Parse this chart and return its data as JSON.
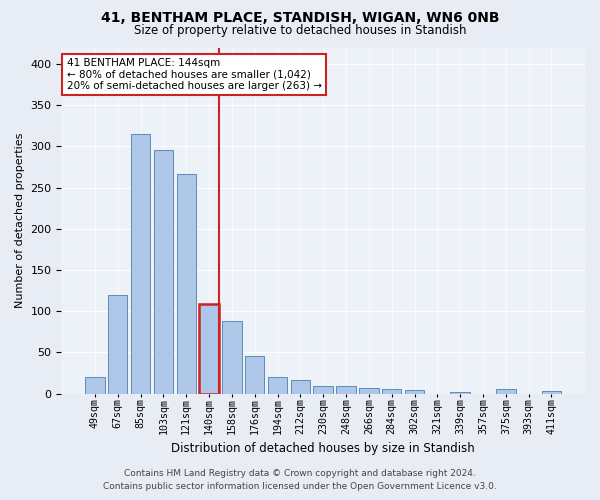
{
  "title1": "41, BENTHAM PLACE, STANDISH, WIGAN, WN6 0NB",
  "title2": "Size of property relative to detached houses in Standish",
  "xlabel": "Distribution of detached houses by size in Standish",
  "ylabel": "Number of detached properties",
  "footer": "Contains HM Land Registry data © Crown copyright and database right 2024.\nContains public sector information licensed under the Open Government Licence v3.0.",
  "bar_labels": [
    "49sqm",
    "67sqm",
    "85sqm",
    "103sqm",
    "121sqm",
    "140sqm",
    "158sqm",
    "176sqm",
    "194sqm",
    "212sqm",
    "230sqm",
    "248sqm",
    "266sqm",
    "284sqm",
    "302sqm",
    "321sqm",
    "339sqm",
    "357sqm",
    "375sqm",
    "393sqm",
    "411sqm"
  ],
  "bar_values": [
    20,
    120,
    315,
    295,
    267,
    109,
    88,
    45,
    20,
    16,
    9,
    9,
    7,
    6,
    4,
    0,
    2,
    0,
    5,
    0,
    3
  ],
  "bar_color": "#aec6e8",
  "bar_edge_color": "#5b8db8",
  "highlight_bar_index": 5,
  "highlight_color": "#cc2222",
  "annotation_line1": "41 BENTHAM PLACE: 144sqm",
  "annotation_line2": "← 80% of detached houses are smaller (1,042)",
  "annotation_line3": "20% of semi-detached houses are larger (263) →",
  "annotation_box_color": "#cc2222",
  "ylim": [
    0,
    420
  ],
  "yticks": [
    0,
    50,
    100,
    150,
    200,
    250,
    300,
    350,
    400
  ],
  "bg_color": "#e8edf5",
  "plot_bg_color": "#edf1f8"
}
